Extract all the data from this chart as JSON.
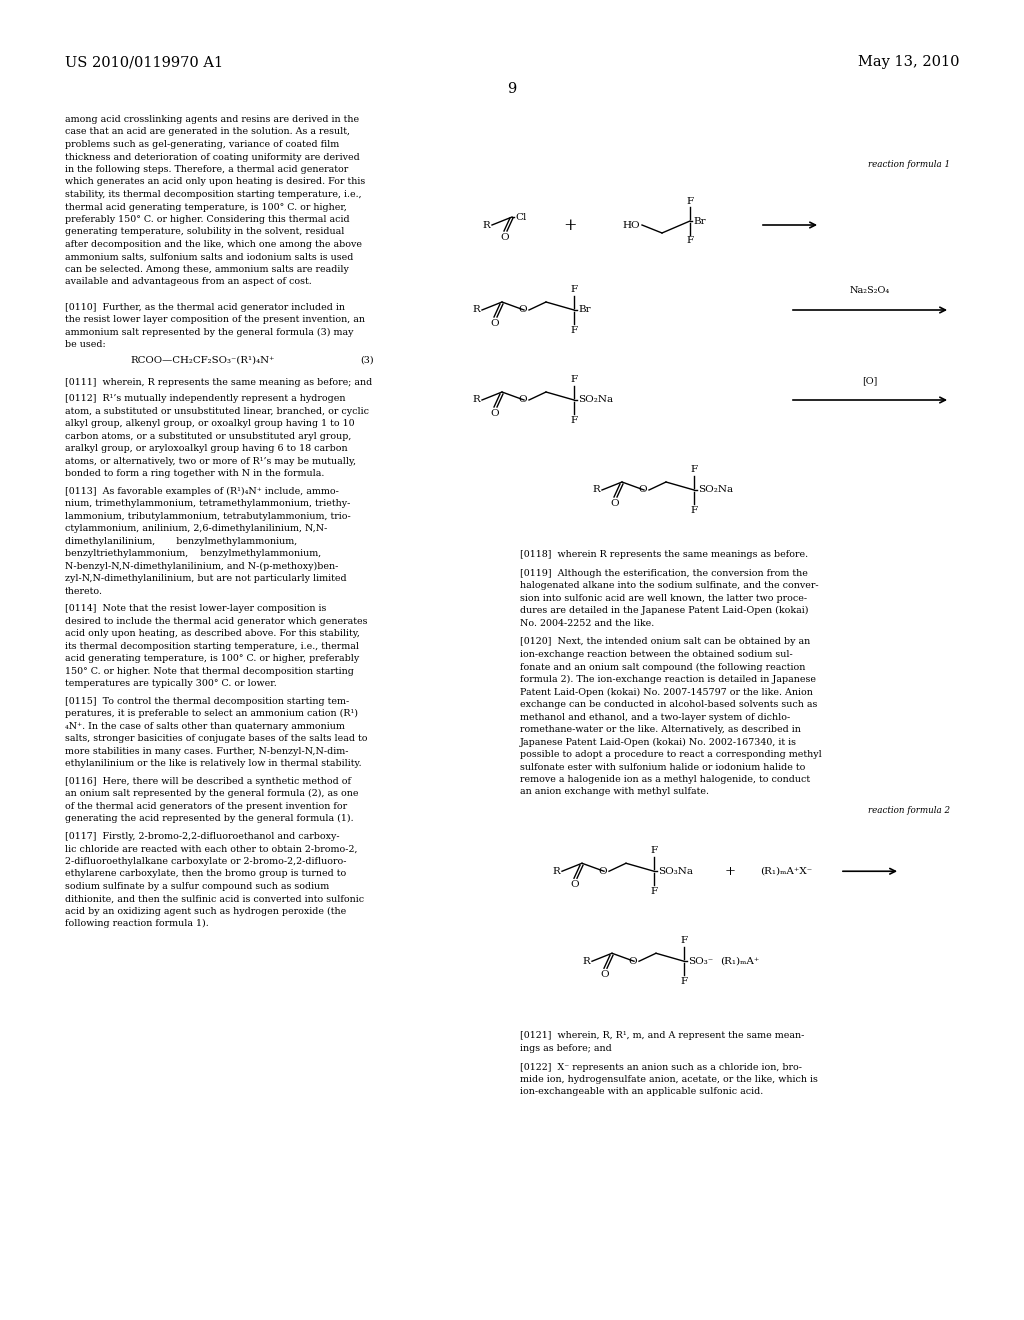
{
  "page_header_left": "US 2010/0119970 A1",
  "page_header_right": "May 13, 2010",
  "page_number": "9",
  "background_color": "#ffffff",
  "text_color": "#000000",
  "font_size_header": 10.5,
  "font_size_body": 6.8,
  "font_size_chem": 7.5,
  "body_text": [
    "among acid crosslinking agents and resins are derived in the",
    "case that an acid are generated in the solution. As a result,",
    "problems such as gel-generating, variance of coated film",
    "thickness and deterioration of coating uniformity are derived",
    "in the following steps. Therefore, a thermal acid generator",
    "which generates an acid only upon heating is desired. For this",
    "stability, its thermal decomposition starting temperature, i.e.,",
    "thermal acid generating temperature, is 100° C. or higher,",
    "preferably 150° C. or higher. Considering this thermal acid",
    "generating temperature, solubility in the solvent, residual",
    "after decomposition and the like, which one among the above",
    "ammonium salts, sulfonium salts and iodonium salts is used",
    "can be selected. Among these, ammonium salts are readily",
    "available and advantageous from an aspect of cost.",
    "",
    "[0110]  Further, as the thermal acid generator included in",
    "the resist lower layer composition of the present invention, an",
    "ammonium salt represented by the general formula (3) may",
    "be used:"
  ],
  "formula_3_text": "RCOO—CH₂CF₂SO₃⁻(R¹)₄N⁺",
  "formula_3_label": "(3)",
  "para_0111": "[0111]  wherein, R represents the same meaning as before; and",
  "para_0112_lines": [
    "[0112]  R¹’s mutually independently represent a hydrogen",
    "atom, a substituted or unsubstituted linear, branched, or cyclic",
    "alkyl group, alkenyl group, or oxoalkyl group having 1 to 10",
    "carbon atoms, or a substituted or unsubstituted aryl group,",
    "aralkyl group, or aryloxoalkyl group having 6 to 18 carbon",
    "atoms, or alternatively, two or more of R¹’s may be mutually,",
    "bonded to form a ring together with N in the formula."
  ],
  "para_0113_lines": [
    "[0113]  As favorable examples of (R¹)₄N⁺ include, ammo-",
    "nium, trimethylammonium, tetramethylammonium, triethy-",
    "lammonium, tributylammonium, tetrabutylammonium, trio-",
    "ctylammonium, anilinium, 2,6-dimethylanilinium, N,N-",
    "dimethylanilinium,       benzylmethylammonium,",
    "benzyltriethylammonium,    benzylmethylammonium,",
    "N-benzyl-N,N-dimethylanilinium, and N-(p-methoxy)ben-",
    "zyl-N,N-dimethylanilinium, but are not particularly limited",
    "thereto."
  ],
  "para_0114_lines": [
    "[0114]  Note that the resist lower-layer composition is",
    "desired to include the thermal acid generator which generates",
    "acid only upon heating, as described above. For this stability,",
    "its thermal decomposition starting temperature, i.e., thermal",
    "acid generating temperature, is 100° C. or higher, preferably",
    "150° C. or higher. Note that thermal decomposition starting",
    "temperatures are typically 300° C. or lower."
  ],
  "para_0115_lines": [
    "[0115]  To control the thermal decomposition starting tem-",
    "peratures, it is preferable to select an ammonium cation (R¹)",
    "₄N⁺. In the case of salts other than quaternary ammonium",
    "salts, stronger basicities of conjugate bases of the salts lead to",
    "more stabilities in many cases. Further, N-benzyl-N,N-dim-",
    "ethylanilinium or the like is relatively low in thermal stability."
  ],
  "para_0116_lines": [
    "[0116]  Here, there will be described a synthetic method of",
    "an onium salt represented by the general formula (2), as one",
    "of the thermal acid generators of the present invention for",
    "generating the acid represented by the general formula (1)."
  ],
  "para_0117_lines": [
    "[0117]  Firstly, 2-bromo-2,2-difluoroethanol and carboxy-",
    "lic chloride are reacted with each other to obtain 2-bromo-2,",
    "2-difluoroethylalkane carboxylate or 2-bromo-2,2-difluoro-",
    "ethylarene carboxylate, then the bromo group is turned to",
    "sodium sulfinate by a sulfur compound such as sodium",
    "dithionite, and then the sulfinic acid is converted into sulfonic",
    "acid by an oxidizing agent such as hydrogen peroxide (the",
    "following reaction formula 1)."
  ],
  "right_para_0118": "[0118]  wherein R represents the same meanings as before.",
  "right_para_0119_lines": [
    "[0119]  Although the esterification, the conversion from the",
    "halogenated alkane into the sodium sulfinate, and the conver-",
    "sion into sulfonic acid are well known, the latter two proce-",
    "dures are detailed in the Japanese Patent Laid-Open (kokai)",
    "No. 2004-2252 and the like."
  ],
  "right_para_0120_lines": [
    "[0120]  Next, the intended onium salt can be obtained by an",
    "ion-exchange reaction between the obtained sodium sul-",
    "fonate and an onium salt compound (the following reaction",
    "formula 2). The ion-exchange reaction is detailed in Japanese",
    "Patent Laid-Open (kokai) No. 2007-145797 or the like. Anion",
    "exchange can be conducted in alcohol-based solvents such as",
    "methanol and ethanol, and a two-layer system of dichlo-",
    "romethane-water or the like. Alternatively, as described in",
    "Japanese Patent Laid-Open (kokai) No. 2002-167340, it is",
    "possible to adopt a procedure to react a corresponding methyl",
    "sulfonate ester with sulfonium halide or iodonium halide to",
    "remove a halogenide ion as a methyl halogenide, to conduct",
    "an anion exchange with methyl sulfate."
  ],
  "right_para_0121_lines": [
    "[0121]  wherein, R, R¹, m, and A represent the same mean-",
    "ings as before; and"
  ],
  "right_para_0122_lines": [
    "[0122]  X⁻ represents an anion such as a chloride ion, bro-",
    "mide ion, hydrogensulfate anion, acetate, or the like, which is",
    "ion-exchangeable with an applicable sulfonic acid."
  ],
  "reaction_formula_1_label": "reaction formula 1",
  "reaction_formula_2_label": "reaction formula 2"
}
